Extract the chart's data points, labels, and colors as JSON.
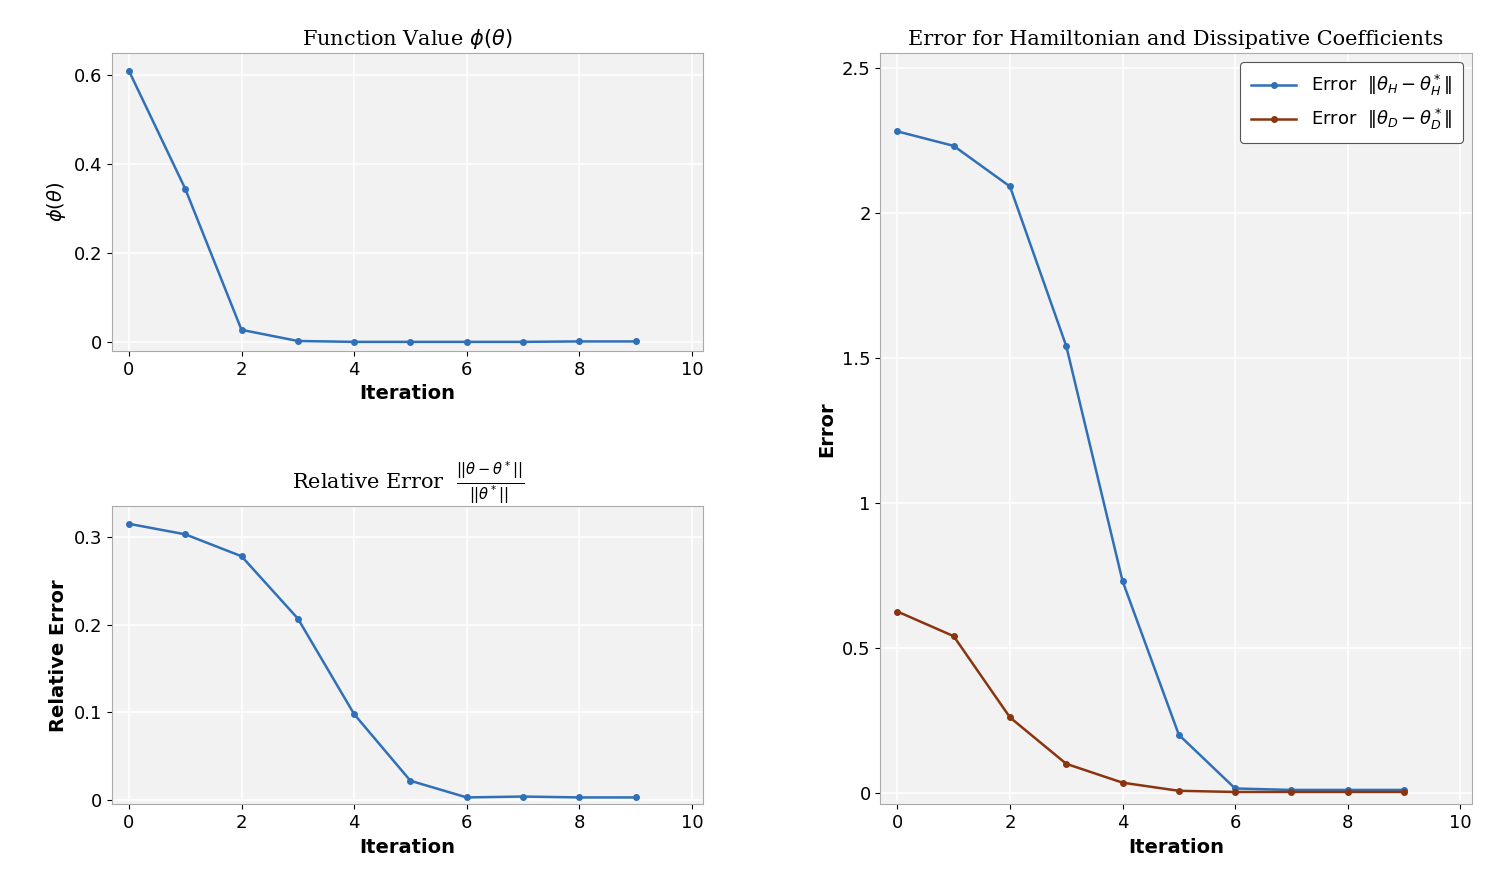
{
  "phi_x": [
    0,
    1,
    2,
    3,
    4,
    5,
    6,
    7,
    8,
    9
  ],
  "phi_y": [
    0.61,
    0.345,
    0.028,
    0.003,
    0.001,
    0.001,
    0.001,
    0.001,
    0.002,
    0.002
  ],
  "rel_x": [
    0,
    1,
    2,
    3,
    4,
    5,
    6,
    7,
    8,
    9
  ],
  "rel_y": [
    0.315,
    0.303,
    0.278,
    0.207,
    0.098,
    0.022,
    0.003,
    0.004,
    0.003,
    0.003
  ],
  "errH_x": [
    0,
    1,
    2,
    3,
    4,
    5,
    6,
    7,
    8,
    9
  ],
  "errH_y": [
    2.28,
    2.23,
    2.09,
    1.54,
    0.73,
    0.2,
    0.015,
    0.01,
    0.01,
    0.01
  ],
  "errD_x": [
    0,
    1,
    2,
    3,
    4,
    5,
    6,
    7,
    8,
    9
  ],
  "errD_y": [
    0.625,
    0.54,
    0.26,
    0.1,
    0.035,
    0.007,
    0.003,
    0.003,
    0.003,
    0.003
  ],
  "line_color_blue": "#3070b8",
  "line_color_orange": "#8b3510",
  "title1": "Function Value $\\phi(\\theta)$",
  "title3": "Error for Hamiltonian and Dissipative Coefficients",
  "ylabel1": "$\\phi(\\theta)$",
  "ylabel2": "Relative Error",
  "ylabel3": "Error",
  "xlabel": "Iteration",
  "legend_H": "Error  $\\|\\theta_H - \\theta_H^*\\|$",
  "legend_D": "Error  $\\|\\theta_D - \\theta_D^*\\|$",
  "phi_ylim": [
    -0.02,
    0.65
  ],
  "rel_ylim": [
    -0.005,
    0.335
  ],
  "err_ylim": [
    -0.04,
    2.55
  ],
  "xlim": [
    -0.3,
    10.2
  ],
  "phi_yticks": [
    0,
    0.2,
    0.4,
    0.6
  ],
  "rel_yticks": [
    0,
    0.1,
    0.2,
    0.3
  ],
  "err_yticks": [
    0,
    0.5,
    1.0,
    1.5,
    2.0,
    2.5
  ],
  "xticks": [
    0,
    2,
    4,
    6,
    8,
    10
  ],
  "bg_color": "#f2f2f2",
  "grid_color": "#ffffff",
  "title_fontsize": 15,
  "label_fontsize": 14,
  "tick_fontsize": 13,
  "legend_fontsize": 13
}
